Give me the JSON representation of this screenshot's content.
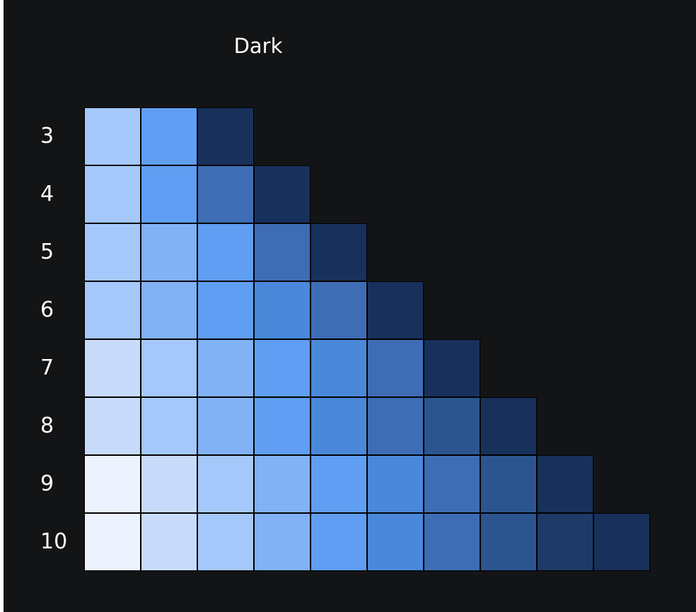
{
  "title": "Dark",
  "palette": {
    "3": [
      "#a4c8fa",
      "#5f9ef2",
      "#18315b"
    ],
    "4": [
      "#a4c8fa",
      "#5f9ef2",
      "#3e6db5",
      "#18315b"
    ],
    "5": [
      "#a4c8fa",
      "#81b2f6",
      "#5f9ef2",
      "#3e6db5",
      "#18315b"
    ],
    "6": [
      "#a4c8fa",
      "#81b2f6",
      "#5f9ef2",
      "#4a88da",
      "#3e6db5",
      "#18315b"
    ],
    "7": [
      "#c8dbfa",
      "#a4c8fa",
      "#81b2f6",
      "#5f9ef2",
      "#4a88da",
      "#3e6db5",
      "#18315b"
    ],
    "8": [
      "#c8dbfa",
      "#a4c8fa",
      "#81b2f6",
      "#5f9ef2",
      "#4a88da",
      "#3e6db5",
      "#2c558f",
      "#18315b"
    ],
    "9": [
      "#ecf2fe",
      "#c8dbfa",
      "#a4c8fa",
      "#81b2f6",
      "#5f9ef2",
      "#4a88da",
      "#3e6db5",
      "#2c558f",
      "#18315b"
    ],
    "10": [
      "#ecf2fe",
      "#c8dbfa",
      "#a4c8fa",
      "#81b2f6",
      "#5f9ef2",
      "#4a88da",
      "#3e6db5",
      "#2c558f",
      "#1f3a68",
      "#18315b"
    ]
  },
  "rows": [
    "3",
    "4",
    "5",
    "6",
    "7",
    "8",
    "9",
    "10"
  ]
}
